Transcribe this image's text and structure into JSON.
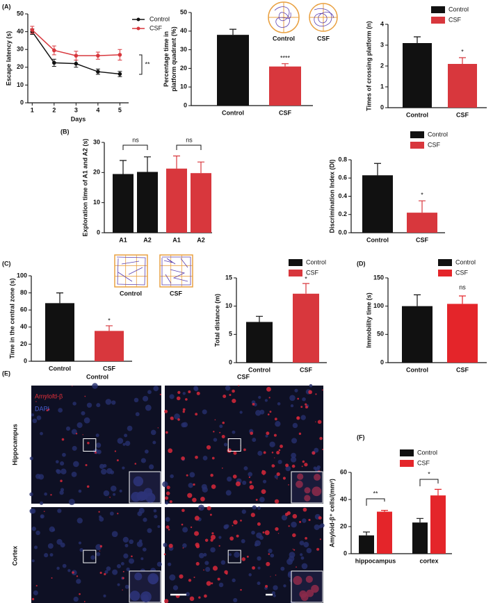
{
  "panel_labels": [
    "(A)",
    "(B)",
    "(C)",
    "(D)",
    "(E)",
    "(F)"
  ],
  "panel_e": {
    "column_labels": [
      "Control",
      "CSF"
    ],
    "row_labels": [
      "Hippocampus",
      "Cortex"
    ],
    "stain_labels": [
      "Amyloid-β",
      "DAPI"
    ]
  },
  "chart_data": [
    {
      "type": "line",
      "xlabel": "Days",
      "ylabel": "Escape latency (s)",
      "x": [
        1,
        2,
        3,
        4,
        5
      ],
      "xlim": [
        0.8,
        5.4
      ],
      "xticks": [
        1,
        2,
        3,
        4,
        5
      ],
      "ylim": [
        0,
        50
      ],
      "yticks": [
        0,
        10,
        20,
        30,
        40,
        50
      ],
      "series": [
        {
          "name": "Control",
          "color": "#111111",
          "values": [
            40,
            22.5,
            22,
            17.5,
            16.2
          ],
          "errors": [
            1.5,
            2,
            2,
            1.5,
            1.5
          ]
        },
        {
          "name": "CSF",
          "color": "#d8373d",
          "values": [
            41,
            29.5,
            26.5,
            26.5,
            27
          ],
          "errors": [
            2,
            2.5,
            2.5,
            2,
            3
          ]
        }
      ],
      "legend": true,
      "annotations": [
        "**"
      ]
    },
    {
      "type": "bar",
      "ylabel": [
        "Percentage time in",
        "platform quadrant (%)"
      ],
      "categories": [
        "Control",
        "CSF"
      ],
      "values": [
        38,
        21
      ],
      "errors": [
        3,
        1.5
      ],
      "colors": [
        "#111111",
        "#d8373d"
      ],
      "ylim": [
        0,
        50
      ],
      "yticks": [
        0,
        10,
        20,
        30,
        40,
        50
      ],
      "legend": false,
      "annotations": [
        "****"
      ],
      "image_labels": [
        "Control",
        "CSF"
      ]
    },
    {
      "type": "bar",
      "ylabel": "Times of crossing platform (n)",
      "categories": [
        "Control",
        "CSF"
      ],
      "values": [
        3.1,
        2.1
      ],
      "errors": [
        0.3,
        0.3
      ],
      "colors": [
        "#111111",
        "#d8373d"
      ],
      "ylim": [
        0,
        4
      ],
      "yticks": [
        0,
        1,
        2,
        3,
        4
      ],
      "legend": true,
      "annotations": [
        "*"
      ]
    },
    {
      "type": "bar",
      "ylabel": "Exploration time of A1 and A2 (s)",
      "categories": [
        "A1",
        "A2",
        "A1",
        "A2"
      ],
      "values": [
        19.5,
        20.2,
        21.3,
        19.8
      ],
      "errors": [
        4.5,
        5,
        4.2,
        3.7
      ],
      "colors": [
        "#111111",
        "#111111",
        "#d8373d",
        "#d8373d"
      ],
      "ylim": [
        0,
        30
      ],
      "yticks": [
        0,
        10,
        20,
        30
      ],
      "legend": false,
      "annotations": [
        "ns",
        "ns"
      ]
    },
    {
      "type": "bar",
      "ylabel": "Discrimination Index (DI)",
      "categories": [
        "Control",
        "CSF"
      ],
      "values": [
        0.63,
        0.22
      ],
      "errors": [
        0.13,
        0.13
      ],
      "colors": [
        "#111111",
        "#d8373d"
      ],
      "ylim": [
        0,
        0.8
      ],
      "yticks": [
        {
          "value": 0,
          "label": "0.0"
        },
        0.2,
        0.4,
        0.6,
        0.8
      ],
      "legend": true,
      "annotations": [
        "*"
      ]
    },
    {
      "type": "bar",
      "ylabel": "Time in the central zone (s)",
      "categories": [
        "Control",
        "CSF"
      ],
      "values": [
        68,
        35.5
      ],
      "errors": [
        12,
        6
      ],
      "colors": [
        "#111111",
        "#d8373d"
      ],
      "ylim": [
        0,
        100
      ],
      "yticks": [
        0,
        20,
        40,
        60,
        80,
        100
      ],
      "legend": false,
      "annotations": [
        "*"
      ],
      "image_labels": [
        "Control",
        "CSF"
      ]
    },
    {
      "type": "bar",
      "ylabel": "Total distance (m)",
      "categories": [
        "Control",
        "CSF"
      ],
      "values": [
        7.2,
        12.2
      ],
      "errors": [
        1,
        1.8
      ],
      "colors": [
        "#111111",
        "#d8373d"
      ],
      "ylim": [
        0,
        15
      ],
      "yticks": [
        0,
        5,
        10,
        15
      ],
      "legend": true,
      "annotations": [
        "*"
      ]
    },
    {
      "type": "bar",
      "ylabel": "Immobility time (s)",
      "categories": [
        "Control",
        "CSF"
      ],
      "values": [
        100,
        104
      ],
      "errors": [
        20,
        14
      ],
      "colors": [
        "#111111",
        "#e4252a"
      ],
      "ylim": [
        0,
        150
      ],
      "yticks": [
        0,
        50,
        100,
        150
      ],
      "legend": true,
      "annotations": [
        "ns"
      ]
    },
    {
      "type": "grouped_bar",
      "ylabel": "Amyloid-β⁺ cells/(mm²)",
      "categories": [
        "hippocampus",
        "cortex"
      ],
      "series": [
        {
          "name": "Control",
          "color": "#111111",
          "values": [
            13.5,
            23
          ],
          "errors": [
            2.5,
            3
          ]
        },
        {
          "name": "CSF",
          "color": "#e4252a",
          "values": [
            31,
            43
          ],
          "errors": [
            1,
            4.5
          ]
        }
      ],
      "ylim": [
        0,
        60
      ],
      "yticks": [
        0,
        20,
        40,
        60
      ],
      "legend": true,
      "annotations": [
        "**",
        "*"
      ]
    }
  ]
}
